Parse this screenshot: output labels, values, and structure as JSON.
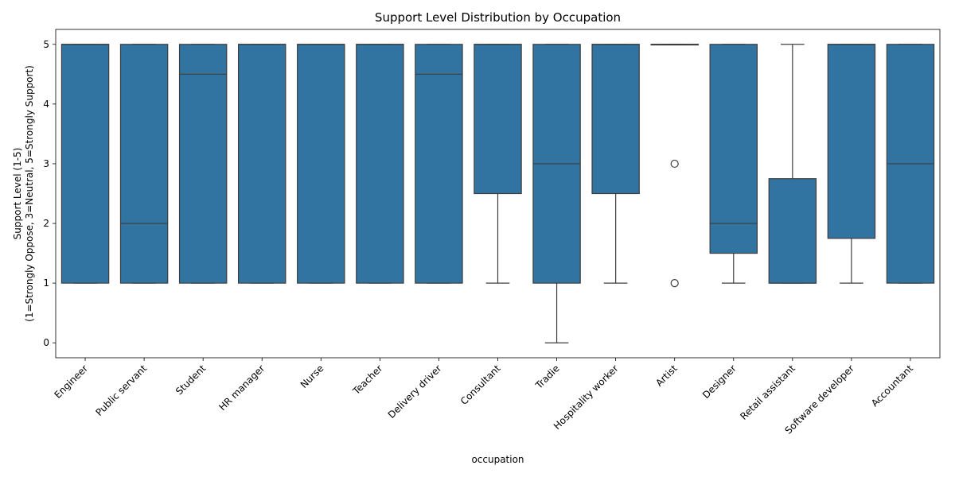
{
  "chart_data": {
    "type": "box",
    "title": "Support Level Distribution by Occupation",
    "xlabel": "occupation",
    "ylabel_lines": [
      "Support Level (1-5)",
      "(1=Strongly Oppose, 3=Neutral, 5=Strongly Support)"
    ],
    "ylim": [
      -0.25,
      5.25
    ],
    "yticks": [
      0,
      1,
      2,
      3,
      4,
      5
    ],
    "box_color": "#3274a1",
    "edge_color": "#3d3d3d",
    "grid": false,
    "categories": [
      {
        "name": "Engineer",
        "whisker_low": 1,
        "q1": 1,
        "median": 5,
        "q3": 5,
        "whisker_high": 5,
        "outliers": []
      },
      {
        "name": "Public servant",
        "whisker_low": 1,
        "q1": 1,
        "median": 2,
        "q3": 5,
        "whisker_high": 5,
        "outliers": []
      },
      {
        "name": "Student",
        "whisker_low": 1,
        "q1": 1,
        "median": 4.5,
        "q3": 5,
        "whisker_high": 5,
        "outliers": []
      },
      {
        "name": "HR manager",
        "whisker_low": 1,
        "q1": 1,
        "median": 5,
        "q3": 5,
        "whisker_high": 5,
        "outliers": []
      },
      {
        "name": "Nurse",
        "whisker_low": 1,
        "q1": 1,
        "median": 5,
        "q3": 5,
        "whisker_high": 5,
        "outliers": []
      },
      {
        "name": "Teacher",
        "whisker_low": 1,
        "q1": 1,
        "median": 5,
        "q3": 5,
        "whisker_high": 5,
        "outliers": []
      },
      {
        "name": "Delivery driver",
        "whisker_low": 1,
        "q1": 1,
        "median": 4.5,
        "q3": 5,
        "whisker_high": 5,
        "outliers": []
      },
      {
        "name": "Consultant",
        "whisker_low": 1,
        "q1": 2.5,
        "median": 5,
        "q3": 5,
        "whisker_high": 5,
        "outliers": []
      },
      {
        "name": "Tradie",
        "whisker_low": 0,
        "q1": 1,
        "median": 3,
        "q3": 5,
        "whisker_high": 5,
        "outliers": []
      },
      {
        "name": "Hospitality worker",
        "whisker_low": 1,
        "q1": 2.5,
        "median": 5,
        "q3": 5,
        "whisker_high": 5,
        "outliers": []
      },
      {
        "name": "Artist",
        "whisker_low": 5,
        "q1": 5,
        "median": 5,
        "q3": 5,
        "whisker_high": 5,
        "outliers": [
          3,
          1
        ]
      },
      {
        "name": "Designer",
        "whisker_low": 1,
        "q1": 1.5,
        "median": 2,
        "q3": 5,
        "whisker_high": 5,
        "outliers": []
      },
      {
        "name": "Retail assistant",
        "whisker_low": 1,
        "q1": 1,
        "median": 1,
        "q3": 2.75,
        "whisker_high": 5,
        "outliers": []
      },
      {
        "name": "Software developer",
        "whisker_low": 1,
        "q1": 1.75,
        "median": 5,
        "q3": 5,
        "whisker_high": 5,
        "outliers": []
      },
      {
        "name": "Accountant",
        "whisker_low": 1,
        "q1": 1,
        "median": 3,
        "q3": 5,
        "whisker_high": 5,
        "outliers": []
      }
    ]
  }
}
